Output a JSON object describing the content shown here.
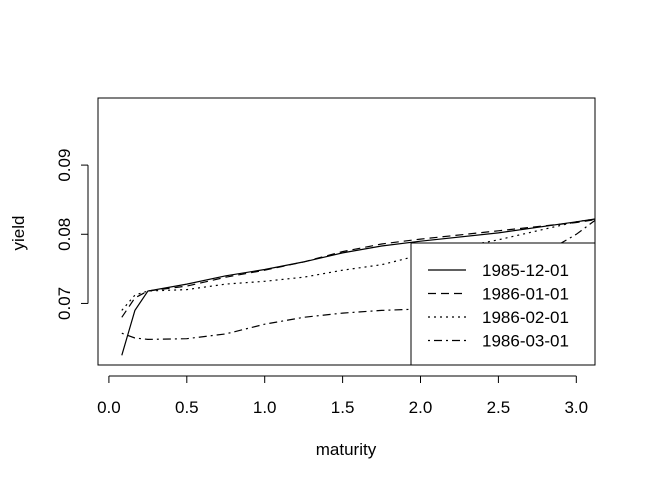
{
  "chart_data": {
    "type": "line",
    "title": "",
    "xlabel": "maturity",
    "ylabel": "yield",
    "xlim": [
      -0.07,
      3.12
    ],
    "ylim": [
      0.0611,
      0.0997
    ],
    "x_ticks": [
      0.0,
      0.5,
      1.0,
      1.5,
      2.0,
      2.5,
      3.0
    ],
    "x_tick_labels": [
      "0.0",
      "0.5",
      "1.0",
      "1.5",
      "2.0",
      "2.5",
      "3.0"
    ],
    "y_ticks": [
      0.07,
      0.08,
      0.09
    ],
    "y_tick_labels": [
      "0.07",
      "0.08",
      "0.09"
    ],
    "grid": false,
    "legend_position": "bottom-right",
    "series": [
      {
        "name": "1985-12-01",
        "style": "solid",
        "x": [
          0.083,
          0.167,
          0.25,
          0.5,
          0.75,
          1.0,
          1.25,
          1.5,
          1.75,
          2.0,
          2.5,
          3.0,
          3.12
        ],
        "y": [
          0.0625,
          0.069,
          0.0718,
          0.0728,
          0.074,
          0.0749,
          0.076,
          0.0773,
          0.0783,
          0.079,
          0.0802,
          0.0818,
          0.0822
        ]
      },
      {
        "name": "1986-01-01",
        "style": "dashed",
        "x": [
          0.083,
          0.167,
          0.25,
          0.5,
          0.75,
          1.0,
          1.25,
          1.5,
          1.75,
          2.0,
          2.5,
          3.0,
          3.12
        ],
        "y": [
          0.068,
          0.0708,
          0.0718,
          0.0725,
          0.0738,
          0.0748,
          0.076,
          0.0775,
          0.0786,
          0.0793,
          0.0805,
          0.0817,
          0.0821
        ]
      },
      {
        "name": "1986-02-01",
        "style": "dotted",
        "x": [
          0.083,
          0.167,
          0.25,
          0.5,
          0.75,
          1.0,
          1.25,
          1.5,
          1.75,
          2.0,
          2.5,
          3.0,
          3.12
        ],
        "y": [
          0.069,
          0.0712,
          0.0718,
          0.072,
          0.0728,
          0.0732,
          0.0738,
          0.0748,
          0.0756,
          0.077,
          0.0792,
          0.0818,
          0.0822
        ]
      },
      {
        "name": "1986-03-01",
        "style": "dotdash",
        "x": [
          0.083,
          0.167,
          0.25,
          0.5,
          0.75,
          1.0,
          1.25,
          1.5,
          1.75,
          2.0,
          2.5,
          3.0,
          3.12
        ],
        "y": [
          0.0657,
          0.065,
          0.0648,
          0.0649,
          0.0656,
          0.067,
          0.068,
          0.0686,
          0.069,
          0.0692,
          0.0735,
          0.08,
          0.082
        ]
      }
    ]
  }
}
